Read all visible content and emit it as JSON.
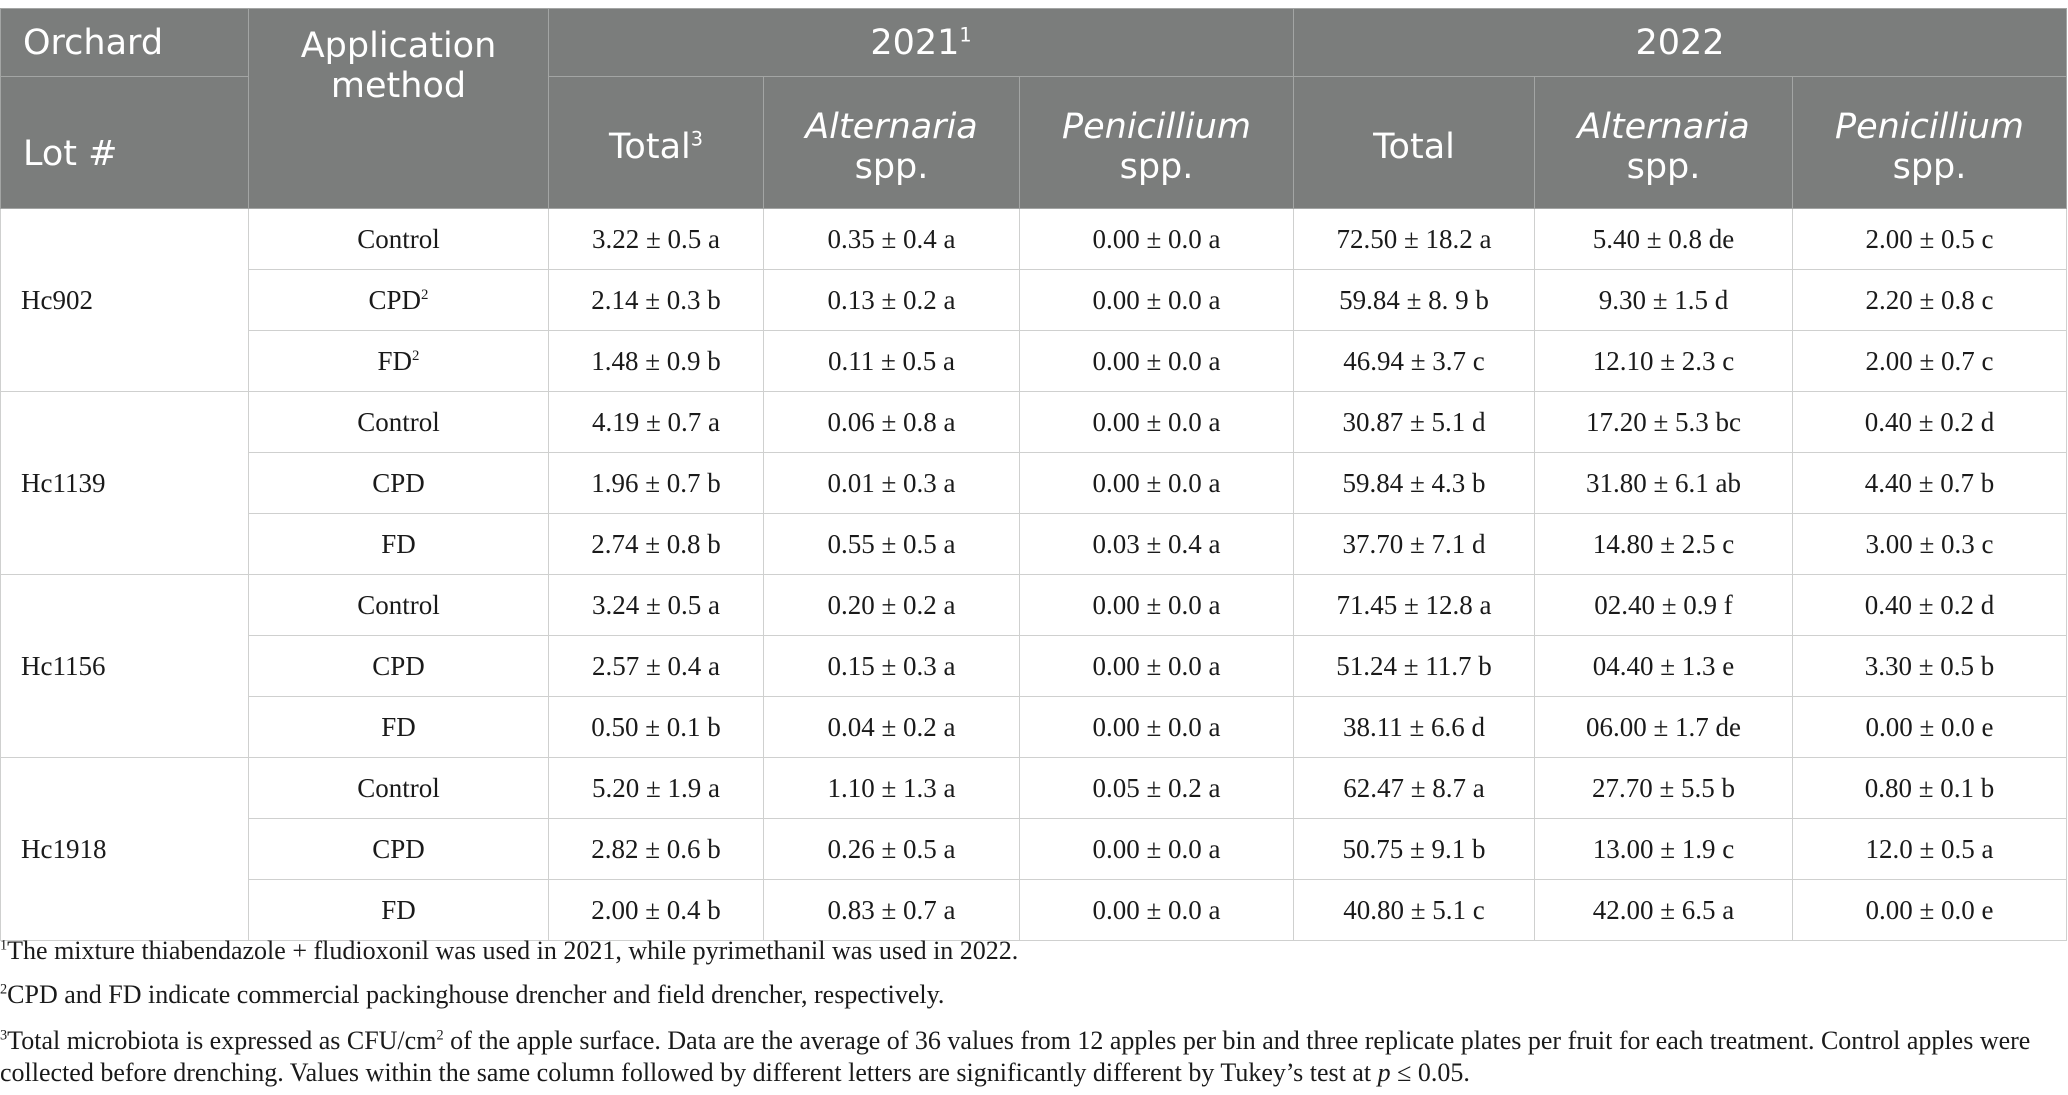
{
  "header": {
    "orchard": "Orchard",
    "lot": "Lot #",
    "application_method": "Application method",
    "year1": "2021",
    "year1_sup": "1",
    "year2": "2022",
    "total": "Total",
    "total_sup": "3",
    "alternaria": "Alternaria",
    "penicillium": "Penicillium",
    "spp": "spp."
  },
  "lots": [
    {
      "name": "Hc902",
      "rows": [
        {
          "method": "Control",
          "method_sup": "",
          "t21": "3.22 ± 0.5 a",
          "a21": "0.35 ± 0.4 a",
          "p21": "0.00 ± 0.0 a",
          "t22": "72.50 ± 18.2 a",
          "a22": "5.40 ± 0.8 de",
          "p22": "2.00 ± 0.5 c"
        },
        {
          "method": "CPD",
          "method_sup": "2",
          "t21": "2.14 ± 0.3 b",
          "a21": "0.13 ± 0.2 a",
          "p21": "0.00 ± 0.0 a",
          "t22": "59.84 ± 8. 9 b",
          "a22": "9.30 ± 1.5 d",
          "p22": "2.20 ± 0.8 c"
        },
        {
          "method": "FD",
          "method_sup": "2",
          "t21": "1.48 ± 0.9 b",
          "a21": "0.11 ± 0.5 a",
          "p21": "0.00 ± 0.0 a",
          "t22": "46.94 ± 3.7 c",
          "a22": "12.10 ± 2.3 c",
          "p22": "2.00 ± 0.7 c"
        }
      ]
    },
    {
      "name": "Hc1139",
      "rows": [
        {
          "method": "Control",
          "method_sup": "",
          "t21": "4.19 ± 0.7 a",
          "a21": "0.06 ± 0.8 a",
          "p21": "0.00 ± 0.0 a",
          "t22": "30.87 ± 5.1 d",
          "a22": "17.20 ± 5.3 bc",
          "p22": "0.40 ± 0.2 d"
        },
        {
          "method": "CPD",
          "method_sup": "",
          "t21": "1.96 ± 0.7 b",
          "a21": "0.01 ± 0.3 a",
          "p21": "0.00 ± 0.0 a",
          "t22": "59.84 ± 4.3 b",
          "a22": "31.80 ± 6.1 ab",
          "p22": "4.40 ± 0.7 b"
        },
        {
          "method": "FD",
          "method_sup": "",
          "t21": "2.74 ± 0.8 b",
          "a21": "0.55 ± 0.5 a",
          "p21": "0.03 ± 0.4 a",
          "t22": "37.70 ± 7.1 d",
          "a22": "14.80 ± 2.5 c",
          "p22": "3.00 ± 0.3 c"
        }
      ]
    },
    {
      "name": "Hc1156",
      "rows": [
        {
          "method": "Control",
          "method_sup": "",
          "t21": "3.24 ± 0.5 a",
          "a21": "0.20 ± 0.2 a",
          "p21": "0.00 ± 0.0 a",
          "t22": "71.45 ± 12.8 a",
          "a22": "02.40 ± 0.9 f",
          "p22": "0.40 ± 0.2 d"
        },
        {
          "method": "CPD",
          "method_sup": "",
          "t21": "2.57 ± 0.4 a",
          "a21": "0.15 ± 0.3 a",
          "p21": "0.00 ± 0.0 a",
          "t22": "51.24 ± 11.7 b",
          "a22": "04.40 ± 1.3 e",
          "p22": "3.30 ± 0.5 b"
        },
        {
          "method": "FD",
          "method_sup": "",
          "t21": "0.50 ± 0.1 b",
          "a21": "0.04 ± 0.2 a",
          "p21": "0.00 ± 0.0 a",
          "t22": "38.11 ± 6.6 d",
          "a22": "06.00 ± 1.7 de",
          "p22": "0.00 ± 0.0 e"
        }
      ]
    },
    {
      "name": "Hc1918",
      "rows": [
        {
          "method": "Control",
          "method_sup": "",
          "t21": "5.20 ± 1.9 a",
          "a21": "1.10 ± 1.3 a",
          "p21": "0.05 ± 0.2 a",
          "t22": "62.47 ± 8.7 a",
          "a22": "27.70 ± 5.5 b",
          "p22": "0.80 ± 0.1 b"
        },
        {
          "method": "CPD",
          "method_sup": "",
          "t21": "2.82 ± 0.6 b",
          "a21": "0.26 ± 0.5 a",
          "p21": "0.00 ± 0.0 a",
          "t22": "50.75 ± 9.1 b",
          "a22": "13.00 ± 1.9 c",
          "p22": "12.0 ± 0.5 a"
        },
        {
          "method": "FD",
          "method_sup": "",
          "t21": "2.00 ± 0.4 b",
          "a21": "0.83 ± 0.7 a",
          "p21": "0.00 ± 0.0 a",
          "t22": "40.80 ± 5.1 c",
          "a22": "42.00 ± 6.5 a",
          "p22": "0.00 ± 0.0 e"
        }
      ]
    }
  ],
  "footnotes": {
    "fn1_num": "1",
    "fn1_text": "The mixture thiabendazole + fludioxonil was used in 2021, while pyrimethanil was used in 2022.",
    "fn2_num": "2",
    "fn2_text": "CPD and FD indicate commercial packinghouse drencher and field drencher, respectively.",
    "fn3_num": "3",
    "fn3_text_a": "Total microbiota is expressed as CFU/cm",
    "fn3_unit_sup": "2",
    "fn3_text_b": " of the apple surface. Data are the average of 36 values from 12 apples per bin and three replicate plates per fruit for each treatment. Control apples were collected before drenching. Values within the same column followed by different letters are significantly different by Tukey’s test at ",
    "fn3_p": "p",
    "fn3_text_c": " ≤ 0.05."
  }
}
